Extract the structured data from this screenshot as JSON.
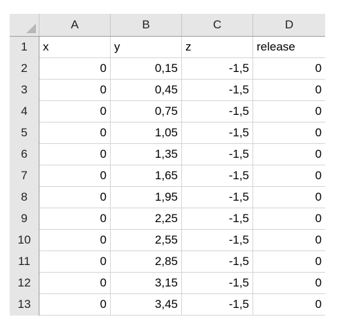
{
  "columns": [
    "A",
    "B",
    "C",
    "D"
  ],
  "header_row": {
    "row": "1",
    "cells": [
      "x",
      "y",
      "z",
      "release"
    ]
  },
  "rows": [
    {
      "row": "2",
      "cells": [
        "0",
        "0,15",
        "-1,5",
        "0"
      ]
    },
    {
      "row": "3",
      "cells": [
        "0",
        "0,45",
        "-1,5",
        "0"
      ]
    },
    {
      "row": "4",
      "cells": [
        "0",
        "0,75",
        "-1,5",
        "0"
      ]
    },
    {
      "row": "5",
      "cells": [
        "0",
        "1,05",
        "-1,5",
        "0"
      ]
    },
    {
      "row": "6",
      "cells": [
        "0",
        "1,35",
        "-1,5",
        "0"
      ]
    },
    {
      "row": "7",
      "cells": [
        "0",
        "1,65",
        "-1,5",
        "0"
      ]
    },
    {
      "row": "8",
      "cells": [
        "0",
        "1,95",
        "-1,5",
        "0"
      ]
    },
    {
      "row": "9",
      "cells": [
        "0",
        "2,25",
        "-1,5",
        "0"
      ]
    },
    {
      "row": "10",
      "cells": [
        "0",
        "2,55",
        "-1,5",
        "0"
      ]
    },
    {
      "row": "11",
      "cells": [
        "0",
        "2,85",
        "-1,5",
        "0"
      ]
    },
    {
      "row": "12",
      "cells": [
        "0",
        "3,15",
        "-1,5",
        "0"
      ]
    },
    {
      "row": "13",
      "cells": [
        "0",
        "3,45",
        "-1,5",
        "0"
      ]
    }
  ],
  "colors": {
    "header_bg": "#e6e6e6",
    "grid": "#d4d4d4",
    "header_border": "#9b9b9b"
  }
}
